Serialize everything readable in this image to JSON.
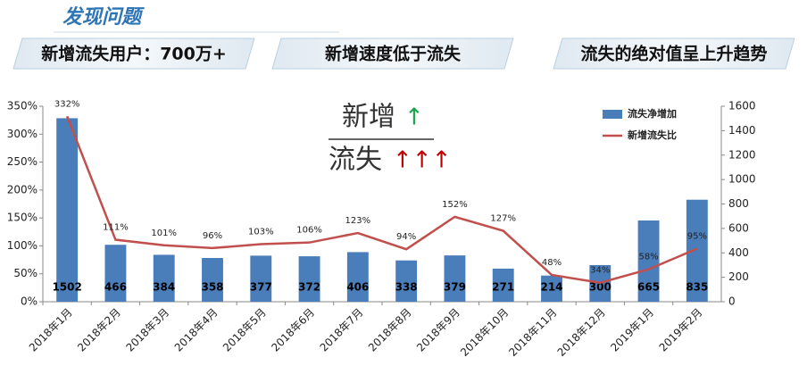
{
  "header": {
    "title": "发现问题"
  },
  "banners": [
    "新增流失用户：700万+",
    "新增速度低于流失",
    "流失的绝对值呈上升趋势"
  ],
  "annotation": {
    "top": "新增",
    "top_arrow": "↑",
    "bottom": "流失",
    "bottom_arrow": "↑↑↑"
  },
  "chart_data": {
    "type": "combo",
    "categories": [
      "2018年1月",
      "2018年2月",
      "2018年3月",
      "2018年4月",
      "2018年5月",
      "2018年6月",
      "2018年7月",
      "2018年8月",
      "2018年9月",
      "2018年10月",
      "2018年11月",
      "2018年12月",
      "2019年1月",
      "2019年2月"
    ],
    "series": [
      {
        "name": "流失净增加",
        "type": "bar",
        "axis": "y2",
        "color": "#4a7ebb",
        "values": [
          1502,
          466,
          384,
          358,
          377,
          372,
          406,
          338,
          379,
          271,
          214,
          300,
          665,
          835
        ]
      },
      {
        "name": "新增流失比",
        "type": "line",
        "color": "#c0504d",
        "values": [
          332,
          111,
          101,
          96,
          103,
          106,
          123,
          94,
          152,
          127,
          48,
          34,
          58,
          95
        ],
        "value_labels": [
          "332%",
          "111%",
          "101%",
          "96%",
          "103%",
          "106%",
          "123%",
          "94%",
          "152%",
          "127%",
          "48%",
          "34%",
          "58%",
          "95%"
        ]
      }
    ],
    "ylim": [
      0,
      350
    ],
    "yticks": [
      {
        "value": 0,
        "label": "0%"
      },
      {
        "value": 50,
        "label": "50%"
      },
      {
        "value": 100,
        "label": "100%"
      },
      {
        "value": 150,
        "label": "150%"
      },
      {
        "value": 200,
        "label": "200%"
      },
      {
        "value": 250,
        "label": "250%"
      },
      {
        "value": 300,
        "label": "300%"
      },
      {
        "value": 350,
        "label": "350%"
      }
    ],
    "y2lim": [
      0,
      1600
    ],
    "y2ticks": [
      0,
      200,
      400,
      600,
      800,
      1000,
      1200,
      1400,
      1600
    ],
    "legend": "top-right",
    "grid": false
  }
}
